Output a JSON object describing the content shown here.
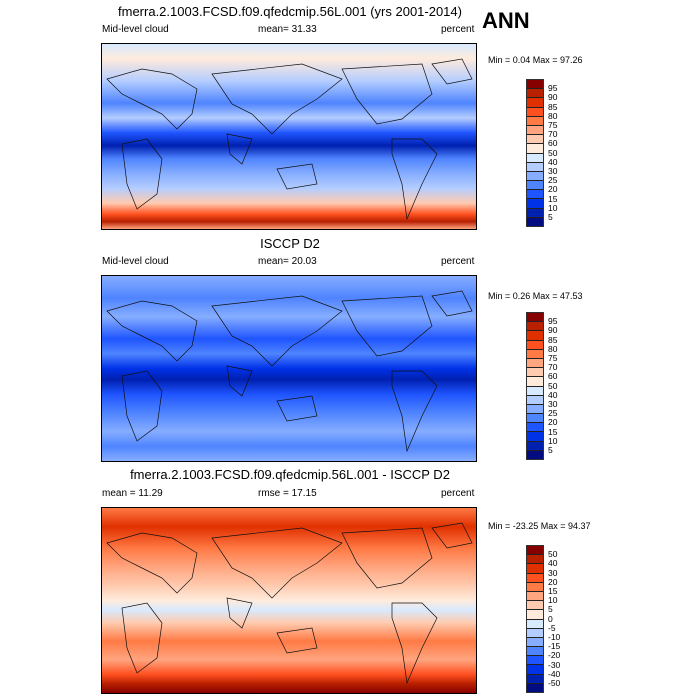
{
  "header": {
    "title": "fmerra.2.1003.FCSD.f09.qfedcmip.56L.001 (yrs 2001-2014)",
    "season": "ANN"
  },
  "panels": [
    {
      "title": "",
      "left": "Mid-level cloud",
      "center": "mean=  31.33",
      "right": "percent",
      "minmax": "Min =   0.04 Max =  97.26",
      "levels": [
        "95",
        "90",
        "85",
        "80",
        "75",
        "70",
        "60",
        "50",
        "40",
        "30",
        "25",
        "20",
        "15",
        "10",
        "5"
      ]
    },
    {
      "title": "ISCCP D2",
      "left": "Mid-level cloud",
      "center": "mean=  20.03",
      "right": "percent",
      "minmax": "Min =   0.26 Max =  47.53",
      "levels": [
        "95",
        "90",
        "85",
        "80",
        "75",
        "70",
        "60",
        "50",
        "40",
        "30",
        "25",
        "20",
        "15",
        "10",
        "5"
      ]
    },
    {
      "title": "fmerra.2.1003.FCSD.f09.qfedcmip.56L.001 - ISCCP D2",
      "left": "mean =  11.29",
      "center": "rmse =  17.15",
      "right": "percent",
      "minmax": "Min = -23.25 Max =  94.37",
      "levels": [
        "50",
        "40",
        "30",
        "20",
        "15",
        "10",
        "5",
        "0",
        "-5",
        "-10",
        "-15",
        "-20",
        "-30",
        "-40",
        "-50"
      ]
    }
  ],
  "colors": [
    "#870000",
    "#b82000",
    "#e03000",
    "#ff5020",
    "#ff7a45",
    "#ffa57f",
    "#ffcbb0",
    "#ffebdc",
    "#d8eaff",
    "#b4cdff",
    "#86adff",
    "#4f84ff",
    "#1f55ff",
    "#0032e8",
    "#0020b0",
    "#000c80"
  ]
}
